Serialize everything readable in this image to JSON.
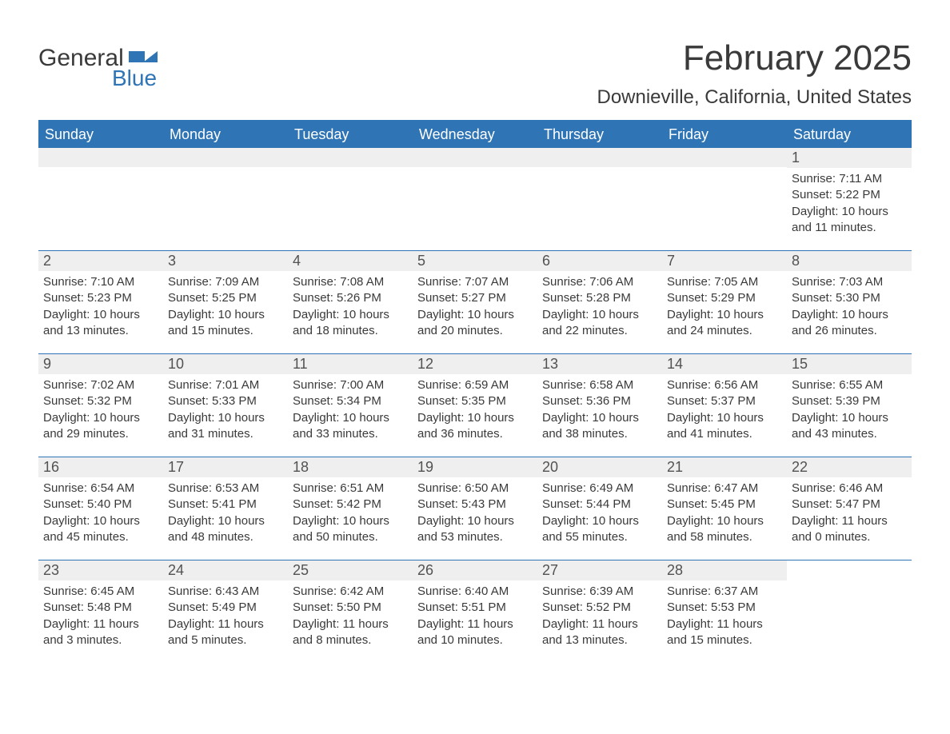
{
  "logo": {
    "text_general": "General",
    "text_blue": "Blue"
  },
  "header": {
    "month_title": "February 2025",
    "location": "Downieville, California, United States"
  },
  "colors": {
    "accent": "#2f74b5",
    "header_text": "#ffffff",
    "daynum_bg": "#efefef",
    "body_text": "#3a3a3a",
    "background": "#ffffff"
  },
  "weekdays": [
    "Sunday",
    "Monday",
    "Tuesday",
    "Wednesday",
    "Thursday",
    "Friday",
    "Saturday"
  ],
  "weeks": [
    [
      null,
      null,
      null,
      null,
      null,
      null,
      {
        "num": "1",
        "sunrise": "Sunrise: 7:11 AM",
        "sunset": "Sunset: 5:22 PM",
        "daylight": "Daylight: 10 hours and 11 minutes."
      }
    ],
    [
      {
        "num": "2",
        "sunrise": "Sunrise: 7:10 AM",
        "sunset": "Sunset: 5:23 PM",
        "daylight": "Daylight: 10 hours and 13 minutes."
      },
      {
        "num": "3",
        "sunrise": "Sunrise: 7:09 AM",
        "sunset": "Sunset: 5:25 PM",
        "daylight": "Daylight: 10 hours and 15 minutes."
      },
      {
        "num": "4",
        "sunrise": "Sunrise: 7:08 AM",
        "sunset": "Sunset: 5:26 PM",
        "daylight": "Daylight: 10 hours and 18 minutes."
      },
      {
        "num": "5",
        "sunrise": "Sunrise: 7:07 AM",
        "sunset": "Sunset: 5:27 PM",
        "daylight": "Daylight: 10 hours and 20 minutes."
      },
      {
        "num": "6",
        "sunrise": "Sunrise: 7:06 AM",
        "sunset": "Sunset: 5:28 PM",
        "daylight": "Daylight: 10 hours and 22 minutes."
      },
      {
        "num": "7",
        "sunrise": "Sunrise: 7:05 AM",
        "sunset": "Sunset: 5:29 PM",
        "daylight": "Daylight: 10 hours and 24 minutes."
      },
      {
        "num": "8",
        "sunrise": "Sunrise: 7:03 AM",
        "sunset": "Sunset: 5:30 PM",
        "daylight": "Daylight: 10 hours and 26 minutes."
      }
    ],
    [
      {
        "num": "9",
        "sunrise": "Sunrise: 7:02 AM",
        "sunset": "Sunset: 5:32 PM",
        "daylight": "Daylight: 10 hours and 29 minutes."
      },
      {
        "num": "10",
        "sunrise": "Sunrise: 7:01 AM",
        "sunset": "Sunset: 5:33 PM",
        "daylight": "Daylight: 10 hours and 31 minutes."
      },
      {
        "num": "11",
        "sunrise": "Sunrise: 7:00 AM",
        "sunset": "Sunset: 5:34 PM",
        "daylight": "Daylight: 10 hours and 33 minutes."
      },
      {
        "num": "12",
        "sunrise": "Sunrise: 6:59 AM",
        "sunset": "Sunset: 5:35 PM",
        "daylight": "Daylight: 10 hours and 36 minutes."
      },
      {
        "num": "13",
        "sunrise": "Sunrise: 6:58 AM",
        "sunset": "Sunset: 5:36 PM",
        "daylight": "Daylight: 10 hours and 38 minutes."
      },
      {
        "num": "14",
        "sunrise": "Sunrise: 6:56 AM",
        "sunset": "Sunset: 5:37 PM",
        "daylight": "Daylight: 10 hours and 41 minutes."
      },
      {
        "num": "15",
        "sunrise": "Sunrise: 6:55 AM",
        "sunset": "Sunset: 5:39 PM",
        "daylight": "Daylight: 10 hours and 43 minutes."
      }
    ],
    [
      {
        "num": "16",
        "sunrise": "Sunrise: 6:54 AM",
        "sunset": "Sunset: 5:40 PM",
        "daylight": "Daylight: 10 hours and 45 minutes."
      },
      {
        "num": "17",
        "sunrise": "Sunrise: 6:53 AM",
        "sunset": "Sunset: 5:41 PM",
        "daylight": "Daylight: 10 hours and 48 minutes."
      },
      {
        "num": "18",
        "sunrise": "Sunrise: 6:51 AM",
        "sunset": "Sunset: 5:42 PM",
        "daylight": "Daylight: 10 hours and 50 minutes."
      },
      {
        "num": "19",
        "sunrise": "Sunrise: 6:50 AM",
        "sunset": "Sunset: 5:43 PM",
        "daylight": "Daylight: 10 hours and 53 minutes."
      },
      {
        "num": "20",
        "sunrise": "Sunrise: 6:49 AM",
        "sunset": "Sunset: 5:44 PM",
        "daylight": "Daylight: 10 hours and 55 minutes."
      },
      {
        "num": "21",
        "sunrise": "Sunrise: 6:47 AM",
        "sunset": "Sunset: 5:45 PM",
        "daylight": "Daylight: 10 hours and 58 minutes."
      },
      {
        "num": "22",
        "sunrise": "Sunrise: 6:46 AM",
        "sunset": "Sunset: 5:47 PM",
        "daylight": "Daylight: 11 hours and 0 minutes."
      }
    ],
    [
      {
        "num": "23",
        "sunrise": "Sunrise: 6:45 AM",
        "sunset": "Sunset: 5:48 PM",
        "daylight": "Daylight: 11 hours and 3 minutes."
      },
      {
        "num": "24",
        "sunrise": "Sunrise: 6:43 AM",
        "sunset": "Sunset: 5:49 PM",
        "daylight": "Daylight: 11 hours and 5 minutes."
      },
      {
        "num": "25",
        "sunrise": "Sunrise: 6:42 AM",
        "sunset": "Sunset: 5:50 PM",
        "daylight": "Daylight: 11 hours and 8 minutes."
      },
      {
        "num": "26",
        "sunrise": "Sunrise: 6:40 AM",
        "sunset": "Sunset: 5:51 PM",
        "daylight": "Daylight: 11 hours and 10 minutes."
      },
      {
        "num": "27",
        "sunrise": "Sunrise: 6:39 AM",
        "sunset": "Sunset: 5:52 PM",
        "daylight": "Daylight: 11 hours and 13 minutes."
      },
      {
        "num": "28",
        "sunrise": "Sunrise: 6:37 AM",
        "sunset": "Sunset: 5:53 PM",
        "daylight": "Daylight: 11 hours and 15 minutes."
      },
      null
    ]
  ]
}
